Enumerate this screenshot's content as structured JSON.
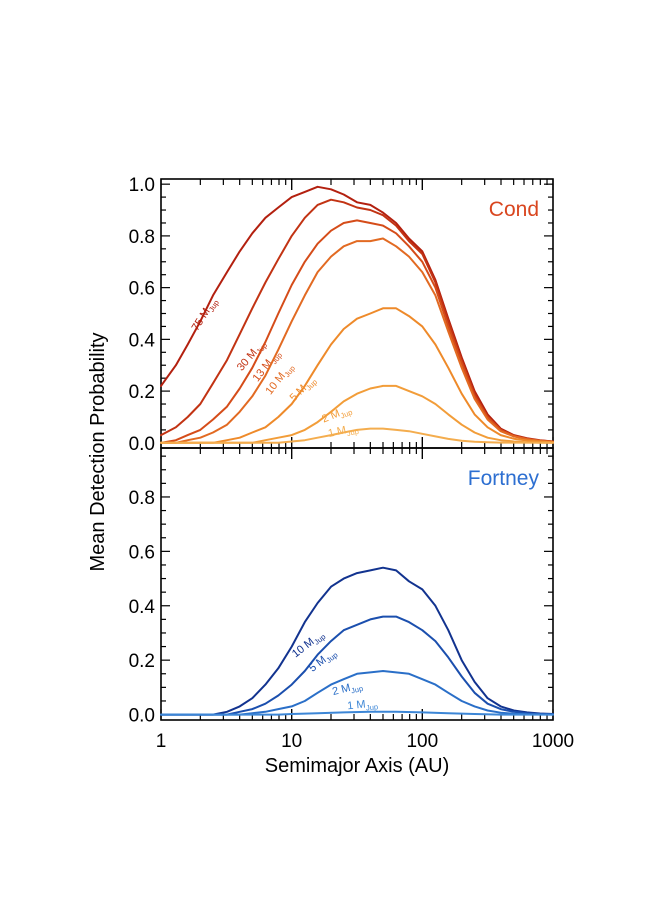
{
  "chart_data": [
    {
      "type": "line",
      "panel": "top",
      "title": "Cond",
      "title_color": "#d9461f",
      "xlabel": "Semimajor Axis (AU)",
      "ylabel": "Mean Detection Probability",
      "xscale": "log",
      "xlim": [
        1,
        1000
      ],
      "ylim": [
        -0.02,
        1.02
      ],
      "yticks": [
        0.0,
        0.2,
        0.4,
        0.6,
        0.8,
        1.0
      ],
      "ytick_labels": [
        "0.0",
        "0.2",
        "0.4",
        "0.6",
        "0.8",
        "1.0"
      ],
      "series": [
        {
          "name": "75 M_Jup",
          "label_main": "75 M",
          "label_sub": "Jup",
          "color": "#b3200f",
          "x": [
            1,
            1.3,
            1.6,
            2,
            2.5,
            3.2,
            4,
            5,
            6.3,
            7.9,
            10,
            12.6,
            15.8,
            20,
            25,
            31.6,
            40,
            50,
            63,
            79,
            100,
            126,
            158,
            200,
            251,
            316,
            398,
            501,
            631,
            794,
            1000
          ],
          "y": [
            0.22,
            0.3,
            0.38,
            0.47,
            0.57,
            0.66,
            0.74,
            0.81,
            0.87,
            0.91,
            0.95,
            0.97,
            0.99,
            0.98,
            0.96,
            0.93,
            0.92,
            0.89,
            0.85,
            0.79,
            0.74,
            0.63,
            0.48,
            0.33,
            0.2,
            0.11,
            0.055,
            0.03,
            0.018,
            0.01,
            0.005
          ],
          "label_x": 2.25,
          "label_y": 0.49,
          "label_angle": -58
        },
        {
          "name": "30 M_Jup",
          "label_main": "30 M",
          "label_sub": "Jup",
          "color": "#c23313",
          "x": [
            1,
            1.3,
            1.6,
            2,
            2.5,
            3.2,
            4,
            5,
            6.3,
            7.9,
            10,
            12.6,
            15.8,
            20,
            25,
            31.6,
            40,
            50,
            63,
            79,
            100,
            126,
            158,
            200,
            251,
            316,
            398,
            501,
            631,
            794,
            1000
          ],
          "y": [
            0.03,
            0.06,
            0.1,
            0.15,
            0.23,
            0.32,
            0.42,
            0.52,
            0.62,
            0.71,
            0.8,
            0.87,
            0.92,
            0.94,
            0.93,
            0.91,
            0.9,
            0.88,
            0.84,
            0.78,
            0.73,
            0.62,
            0.47,
            0.32,
            0.19,
            0.1,
            0.05,
            0.028,
            0.016,
            0.009,
            0.005
          ],
          "label_x": 5.1,
          "label_y": 0.33,
          "label_angle": -50
        },
        {
          "name": "13 M_Jup",
          "label_main": "13 M",
          "label_sub": "Jup",
          "color": "#d54c19",
          "x": [
            1,
            1.3,
            1.6,
            2,
            2.5,
            3.2,
            4,
            5,
            6.3,
            7.9,
            10,
            12.6,
            15.8,
            20,
            25,
            31.6,
            40,
            50,
            63,
            79,
            100,
            126,
            158,
            200,
            251,
            316,
            398,
            501,
            631,
            794,
            1000
          ],
          "y": [
            0.0,
            0.01,
            0.03,
            0.05,
            0.09,
            0.14,
            0.21,
            0.29,
            0.39,
            0.5,
            0.61,
            0.7,
            0.77,
            0.82,
            0.85,
            0.86,
            0.85,
            0.84,
            0.81,
            0.76,
            0.7,
            0.6,
            0.45,
            0.31,
            0.18,
            0.1,
            0.05,
            0.027,
            0.015,
            0.008,
            0.004
          ],
          "label_x": 6.7,
          "label_y": 0.29,
          "label_angle": -52
        },
        {
          "name": "10 M_Jup",
          "label_main": "10 M",
          "label_sub": "Jup",
          "color": "#e26a22",
          "x": [
            1,
            1.3,
            1.6,
            2,
            2.5,
            3.2,
            4,
            5,
            6.3,
            7.9,
            10,
            12.6,
            15.8,
            20,
            25,
            31.6,
            40,
            50,
            63,
            79,
            100,
            126,
            158,
            200,
            251,
            316,
            398,
            501,
            631,
            794,
            1000
          ],
          "y": [
            0.0,
            0.0,
            0.01,
            0.02,
            0.04,
            0.07,
            0.12,
            0.18,
            0.26,
            0.36,
            0.47,
            0.57,
            0.66,
            0.72,
            0.76,
            0.78,
            0.78,
            0.79,
            0.76,
            0.72,
            0.66,
            0.57,
            0.43,
            0.29,
            0.17,
            0.09,
            0.045,
            0.025,
            0.014,
            0.008,
            0.004
          ],
          "label_x": 8.4,
          "label_y": 0.24,
          "label_angle": -52
        },
        {
          "name": "5 M_Jup",
          "label_main": "5 M",
          "label_sub": "Jup",
          "color": "#ee8a2a",
          "x": [
            1,
            1.6,
            2.5,
            3.2,
            4,
            5,
            6.3,
            7.9,
            10,
            12.6,
            15.8,
            20,
            25,
            31.6,
            40,
            50,
            63,
            79,
            100,
            126,
            158,
            200,
            251,
            316,
            398,
            501,
            631,
            794,
            1000
          ],
          "y": [
            0.0,
            0.0,
            0.0,
            0.01,
            0.02,
            0.04,
            0.06,
            0.1,
            0.15,
            0.22,
            0.3,
            0.38,
            0.44,
            0.48,
            0.5,
            0.52,
            0.52,
            0.49,
            0.45,
            0.38,
            0.29,
            0.19,
            0.11,
            0.06,
            0.03,
            0.016,
            0.009,
            0.005,
            0.002
          ],
          "label_x": 12.6,
          "label_y": 0.2,
          "label_angle": -45
        },
        {
          "name": "2 M_Jup",
          "label_main": "2 M",
          "label_sub": "Jup",
          "color": "#f29d39",
          "x": [
            1,
            2.5,
            4,
            5,
            6.3,
            7.9,
            10,
            12.6,
            15.8,
            20,
            25,
            31.6,
            40,
            50,
            63,
            79,
            100,
            126,
            158,
            200,
            251,
            316,
            398,
            501,
            631,
            794,
            1000
          ],
          "y": [
            0.0,
            0.0,
            0.0,
            0.0,
            0.01,
            0.02,
            0.03,
            0.05,
            0.08,
            0.12,
            0.16,
            0.19,
            0.21,
            0.22,
            0.22,
            0.2,
            0.18,
            0.15,
            0.11,
            0.07,
            0.04,
            0.02,
            0.01,
            0.005,
            0.002,
            0.001,
            0.0
          ],
          "label_x": 22.5,
          "label_y": 0.1,
          "label_angle": -22
        },
        {
          "name": "1 M_Jup",
          "label_main": "1 M",
          "label_sub": "Jup",
          "color": "#f4ad4e",
          "x": [
            1,
            5,
            7.9,
            10,
            12.6,
            15.8,
            20,
            25,
            31.6,
            40,
            50,
            63,
            79,
            100,
            126,
            158,
            200,
            251,
            316,
            398,
            1000
          ],
          "y": [
            0.0,
            0.0,
            0.0,
            0.005,
            0.01,
            0.02,
            0.03,
            0.04,
            0.05,
            0.055,
            0.055,
            0.05,
            0.045,
            0.035,
            0.025,
            0.015,
            0.008,
            0.004,
            0.002,
            0.001,
            0.0
          ],
          "label_x": 25,
          "label_y": 0.035,
          "label_angle": -12
        }
      ]
    },
    {
      "type": "line",
      "panel": "bottom",
      "title": "Fortney",
      "title_color": "#2d6fd1",
      "xlabel": "Semimajor Axis (AU)",
      "ylabel": "Mean Detection Probability",
      "xscale": "log",
      "xlim": [
        1,
        1000
      ],
      "ylim": [
        -0.02,
        0.98
      ],
      "yticks": [
        0.0,
        0.2,
        0.4,
        0.6,
        0.8
      ],
      "ytick_labels": [
        "0.0",
        "0.2",
        "0.4",
        "0.6",
        "0.8"
      ],
      "xticks": [
        1,
        10,
        100,
        1000
      ],
      "xtick_labels": [
        "1",
        "10",
        "100",
        "1000"
      ],
      "series": [
        {
          "name": "10 M_Jup",
          "label_main": "10 M",
          "label_sub": "Jup",
          "color": "#12338f",
          "x": [
            1,
            2.5,
            3.2,
            4,
            5,
            6.3,
            7.9,
            10,
            12.6,
            15.8,
            20,
            25,
            31.6,
            40,
            50,
            63,
            79,
            100,
            126,
            158,
            200,
            251,
            316,
            398,
            501,
            631,
            794,
            1000
          ],
          "y": [
            0.0,
            0.0,
            0.01,
            0.03,
            0.06,
            0.11,
            0.17,
            0.25,
            0.34,
            0.41,
            0.47,
            0.5,
            0.52,
            0.53,
            0.54,
            0.53,
            0.49,
            0.46,
            0.4,
            0.31,
            0.2,
            0.12,
            0.06,
            0.03,
            0.015,
            0.008,
            0.004,
            0.002
          ],
          "label_x": 13.8,
          "label_y": 0.25,
          "label_angle": -38
        },
        {
          "name": "5 M_Jup",
          "label_main": "5 M",
          "label_sub": "Jup",
          "color": "#1b4fae",
          "x": [
            1,
            3.2,
            4,
            5,
            6.3,
            7.9,
            10,
            12.6,
            15.8,
            20,
            25,
            31.6,
            40,
            50,
            63,
            79,
            100,
            126,
            158,
            200,
            251,
            316,
            398,
            501,
            631,
            794,
            1000
          ],
          "y": [
            0.0,
            0.0,
            0.01,
            0.02,
            0.04,
            0.07,
            0.11,
            0.16,
            0.22,
            0.27,
            0.31,
            0.33,
            0.35,
            0.36,
            0.36,
            0.34,
            0.31,
            0.27,
            0.21,
            0.14,
            0.08,
            0.04,
            0.02,
            0.01,
            0.005,
            0.002,
            0.001
          ],
          "label_x": 17.8,
          "label_y": 0.19,
          "label_angle": -38
        },
        {
          "name": "2 M_Jup",
          "label_main": "2 M",
          "label_sub": "Jup",
          "color": "#2a6fc8",
          "x": [
            1,
            4,
            5,
            6.3,
            7.9,
            10,
            12.6,
            15.8,
            20,
            25,
            31.6,
            40,
            50,
            63,
            79,
            100,
            126,
            158,
            200,
            251,
            316,
            398,
            501,
            631,
            1000
          ],
          "y": [
            0.0,
            0.0,
            0.005,
            0.01,
            0.02,
            0.03,
            0.05,
            0.08,
            0.11,
            0.13,
            0.15,
            0.155,
            0.16,
            0.155,
            0.15,
            0.13,
            0.11,
            0.08,
            0.05,
            0.03,
            0.015,
            0.007,
            0.003,
            0.001,
            0.0
          ],
          "label_x": 27,
          "label_y": 0.085,
          "label_angle": -14
        },
        {
          "name": "1 M_Jup",
          "label_main": "1 M",
          "label_sub": "Jup",
          "color": "#3c86d6",
          "x": [
            1,
            7.9,
            10,
            15.8,
            25,
            40,
            63,
            100,
            158,
            251,
            398,
            1000
          ],
          "y": [
            0.0,
            0.0,
            0.002,
            0.005,
            0.008,
            0.01,
            0.01,
            0.008,
            0.005,
            0.002,
            0.0,
            0.0
          ],
          "label_x": 35,
          "label_y": 0.025,
          "label_angle": -6
        }
      ]
    }
  ]
}
